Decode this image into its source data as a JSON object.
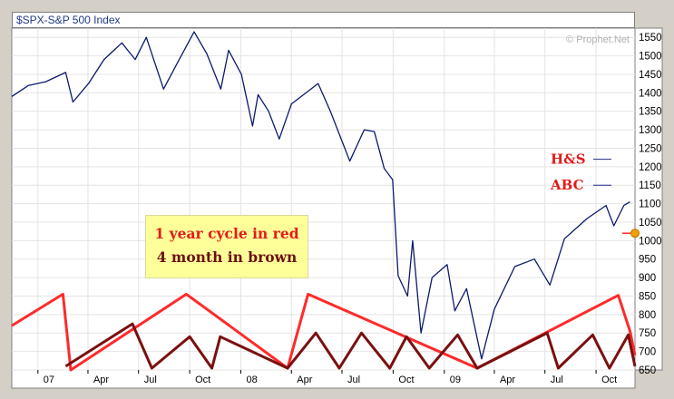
{
  "header": {
    "title": "$SPX-S&P 500 Index"
  },
  "watermark": "© Prophet.Net",
  "callout": {
    "line1": "1 year cycle in red",
    "line2": "4 month in brown"
  },
  "annotations": [
    {
      "label": "H&S",
      "value": 1220,
      "color": "#e31b1b",
      "line_color": "#1f2a8a"
    },
    {
      "label": "ABC",
      "value": 1150,
      "color": "#e31b1b",
      "line_color": "#1f2a8a"
    }
  ],
  "colors": {
    "price": "#0a1a6e",
    "cycle_1y": "#ff2a2a",
    "cycle_4m": "#7a1010",
    "marker": "#f0a000",
    "annotation_text": "#e31b1b"
  },
  "chart_data": {
    "type": "line",
    "title": "$SPX-S&P 500 Index",
    "xlabel": "",
    "ylabel": "",
    "grid": true,
    "x_ticks": [
      "07",
      "Apr",
      "Jul",
      "Oct",
      "08",
      "Apr",
      "Jul",
      "Oct",
      "09",
      "Apr",
      "Jul",
      "Oct"
    ],
    "x_tick_dates": [
      "2007-01-01",
      "2007-04-01",
      "2007-07-01",
      "2007-10-01",
      "2008-01-01",
      "2008-04-01",
      "2008-07-01",
      "2008-10-01",
      "2009-01-01",
      "2009-04-01",
      "2009-07-01",
      "2009-10-01"
    ],
    "xlim": [
      "2006-11-15",
      "2009-12-10"
    ],
    "ylim": [
      650,
      1575
    ],
    "y_ticks": [
      650,
      700,
      750,
      800,
      850,
      900,
      950,
      1000,
      1050,
      1100,
      1150,
      1200,
      1250,
      1300,
      1350,
      1400,
      1450,
      1500,
      1550
    ],
    "series": [
      {
        "name": "S&P 500",
        "points": [
          [
            "2006-11-15",
            1390
          ],
          [
            "2006-12-15",
            1420
          ],
          [
            "2007-01-15",
            1430
          ],
          [
            "2007-02-20",
            1455
          ],
          [
            "2007-03-05",
            1375
          ],
          [
            "2007-04-02",
            1425
          ],
          [
            "2007-04-30",
            1490
          ],
          [
            "2007-06-01",
            1535
          ],
          [
            "2007-06-25",
            1490
          ],
          [
            "2007-07-15",
            1550
          ],
          [
            "2007-08-15",
            1410
          ],
          [
            "2007-09-05",
            1470
          ],
          [
            "2007-10-09",
            1565
          ],
          [
            "2007-11-01",
            1505
          ],
          [
            "2007-11-26",
            1410
          ],
          [
            "2007-12-10",
            1515
          ],
          [
            "2008-01-02",
            1450
          ],
          [
            "2008-01-22",
            1310
          ],
          [
            "2008-02-01",
            1395
          ],
          [
            "2008-02-20",
            1350
          ],
          [
            "2008-03-10",
            1275
          ],
          [
            "2008-04-01",
            1370
          ],
          [
            "2008-05-19",
            1425
          ],
          [
            "2008-06-10",
            1350
          ],
          [
            "2008-07-15",
            1215
          ],
          [
            "2008-08-10",
            1300
          ],
          [
            "2008-08-28",
            1295
          ],
          [
            "2008-09-15",
            1195
          ],
          [
            "2008-09-30",
            1165
          ],
          [
            "2008-10-10",
            905
          ],
          [
            "2008-10-27",
            850
          ],
          [
            "2008-11-05",
            1000
          ],
          [
            "2008-11-20",
            750
          ],
          [
            "2008-12-10",
            900
          ],
          [
            "2009-01-06",
            935
          ],
          [
            "2009-01-20",
            810
          ],
          [
            "2009-02-10",
            870
          ],
          [
            "2009-03-09",
            680
          ],
          [
            "2009-04-01",
            815
          ],
          [
            "2009-05-08",
            930
          ],
          [
            "2009-06-12",
            950
          ],
          [
            "2009-07-10",
            880
          ],
          [
            "2009-08-05",
            1005
          ],
          [
            "2009-09-15",
            1060
          ],
          [
            "2009-10-19",
            1095
          ],
          [
            "2009-11-02",
            1040
          ],
          [
            "2009-11-20",
            1095
          ],
          [
            "2009-12-01",
            1105
          ]
        ]
      },
      {
        "name": "1 year cycle",
        "points": [
          [
            "2006-11-15",
            770
          ],
          [
            "2007-02-15",
            855
          ],
          [
            "2007-03-01",
            650
          ],
          [
            "2007-09-25",
            855
          ],
          [
            "2008-03-25",
            655
          ],
          [
            "2008-05-01",
            855
          ],
          [
            "2009-03-01",
            655
          ],
          [
            "2009-11-10",
            852
          ],
          [
            "2009-12-01",
            755
          ],
          [
            "2009-12-10",
            690
          ]
        ]
      },
      {
        "name": "4 month cycle",
        "points": [
          [
            "2007-02-20",
            660
          ],
          [
            "2007-06-20",
            775
          ],
          [
            "2007-07-25",
            655
          ],
          [
            "2007-10-01",
            740
          ],
          [
            "2007-11-10",
            655
          ],
          [
            "2007-11-25",
            740
          ],
          [
            "2008-03-25",
            655
          ],
          [
            "2008-05-15",
            750
          ],
          [
            "2008-06-26",
            655
          ],
          [
            "2008-08-05",
            750
          ],
          [
            "2008-09-25",
            655
          ],
          [
            "2008-10-25",
            740
          ],
          [
            "2008-12-05",
            655
          ],
          [
            "2009-01-25",
            745
          ],
          [
            "2009-03-01",
            655
          ],
          [
            "2009-07-05",
            750
          ],
          [
            "2009-07-25",
            655
          ],
          [
            "2009-09-25",
            745
          ],
          [
            "2009-10-25",
            655
          ],
          [
            "2009-11-28",
            745
          ],
          [
            "2009-12-10",
            660
          ]
        ]
      }
    ],
    "marker": {
      "date": "2009-12-10",
      "value": 1020
    }
  }
}
